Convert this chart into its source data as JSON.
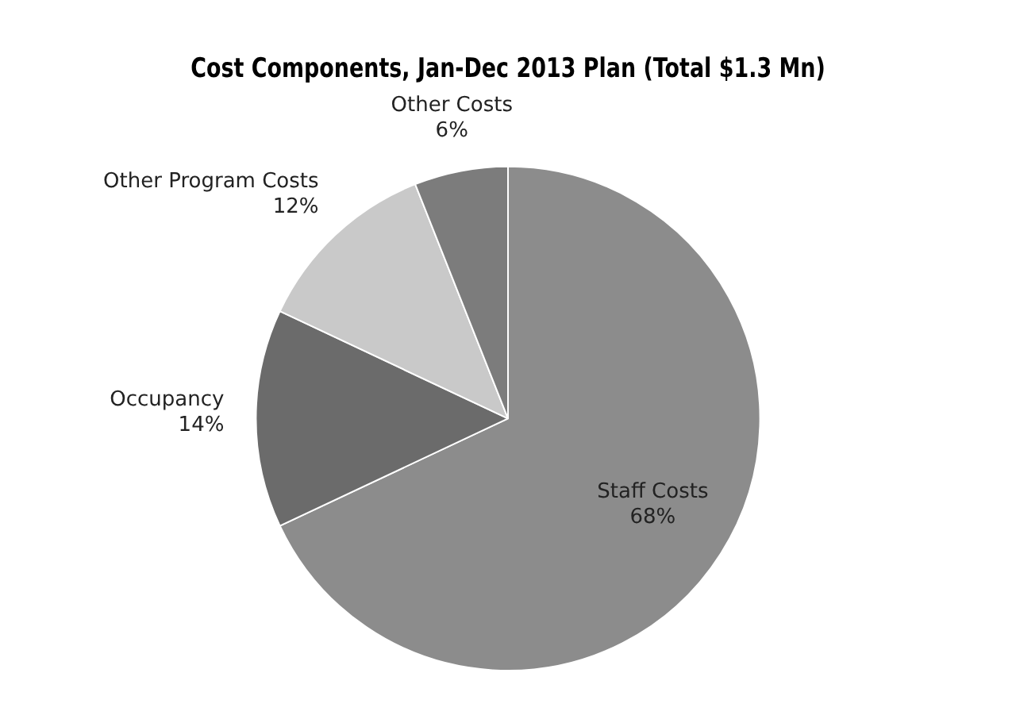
{
  "chart_data": {
    "type": "pie",
    "title": "Cost Components, Jan-Dec 2013 Plan (Total $1.3 Mn)",
    "categories": [
      "Staff Costs",
      "Occupancy",
      "Other Program Costs",
      "Other Costs"
    ],
    "values": [
      68,
      14,
      12,
      6
    ],
    "value_labels": [
      "68%",
      "14%",
      "12%",
      "6%"
    ],
    "colors": [
      "#8c8c8c",
      "#6b6b6b",
      "#c9c9c9",
      "#7c7c7c"
    ]
  }
}
